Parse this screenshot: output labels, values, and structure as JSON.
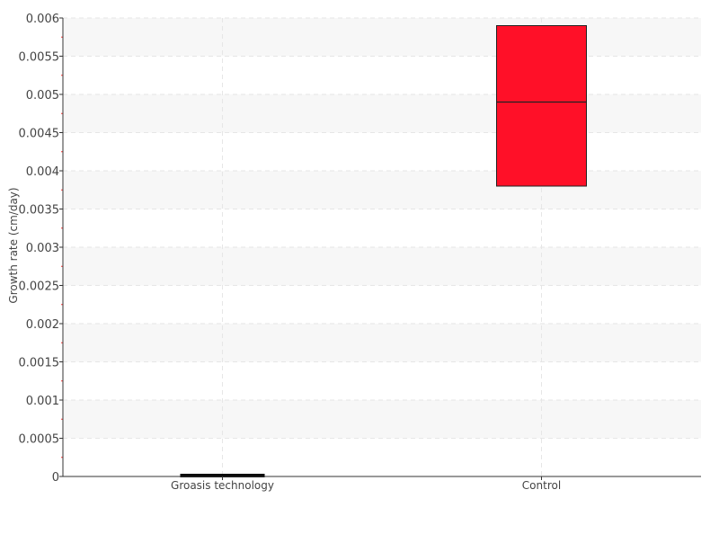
{
  "chart_data": {
    "type": "box",
    "title": "",
    "xlabel": "",
    "ylabel": "Growth rate (cm/day)",
    "ylim": [
      0,
      0.006
    ],
    "yticks": [
      "0",
      "0.0005",
      "0.001",
      "0.0015",
      "0.002",
      "0.0025",
      "0.003",
      "0.0035",
      "0.004",
      "0.0045",
      "0.005",
      "0.0055",
      "0.006"
    ],
    "categories": [
      "Groasis technology",
      "Control"
    ],
    "boxes": [
      {
        "category": "Groasis technology",
        "q1": 0,
        "median": 0,
        "q3": 0,
        "color": "#000000"
      },
      {
        "category": "Control",
        "q1": 0.0038,
        "median": 0.0049,
        "q3": 0.0059,
        "color": "#ff1028"
      }
    ],
    "grid": true,
    "band_color": "#f7f7f7",
    "minor_tick_color": "#ff3030"
  }
}
